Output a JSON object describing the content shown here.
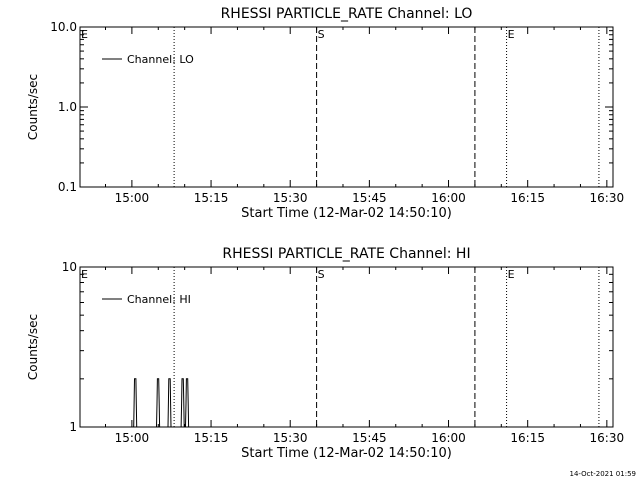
{
  "chart_data": [
    {
      "type": "line",
      "title": "RHESSI PARTICLE_RATE Channel: LO",
      "xlabel": "Start Time (12-Mar-02 14:50:10)",
      "ylabel": "Counts/sec",
      "yscale": "log",
      "xlim": [
        "14:50:10",
        "16:31:10"
      ],
      "ylim": [
        0.1,
        10.0
      ],
      "x_ticks": [
        "15:00",
        "15:15",
        "15:30",
        "15:45",
        "16:00",
        "16:15",
        "16:30"
      ],
      "y_ticks": [
        "0.1",
        "1.0",
        "10.0"
      ],
      "grid": false,
      "legend": {
        "position": "top-left",
        "entries": [
          "Channel: LO"
        ]
      },
      "series": [
        {
          "name": "Channel: LO",
          "points": []
        }
      ],
      "markers": [
        {
          "time": "15:08:00",
          "style": "dotted",
          "label": ""
        },
        {
          "time": "15:35:00",
          "style": "dashed",
          "label": "S"
        },
        {
          "time": "16:05:00",
          "style": "dashed",
          "label": ""
        },
        {
          "time": "16:11:00",
          "style": "dotted",
          "label": "E"
        },
        {
          "time": "16:28:30",
          "style": "dotted",
          "label": ""
        }
      ],
      "corner_label": "E"
    },
    {
      "type": "line",
      "title": "RHESSI PARTICLE_RATE Channel: HI",
      "xlabel": "Start Time (12-Mar-02 14:50:10)",
      "ylabel": "Counts/sec",
      "yscale": "log",
      "xlim": [
        "14:50:10",
        "16:31:10"
      ],
      "ylim": [
        1,
        10
      ],
      "x_ticks": [
        "15:00",
        "15:15",
        "15:30",
        "15:45",
        "16:00",
        "16:15",
        "16:30"
      ],
      "y_ticks": [
        "1",
        "10"
      ],
      "grid": false,
      "legend": {
        "position": "top-left",
        "entries": [
          "Channel: HI"
        ]
      },
      "series": [
        {
          "name": "Channel: HI",
          "points": [
            [
              "15:00:20",
              1
            ],
            [
              "15:00:25",
              1.4
            ],
            [
              "15:00:30",
              2
            ],
            [
              "15:00:45",
              2
            ],
            [
              "15:00:50",
              1.4
            ],
            [
              "15:00:55",
              1
            ],
            [
              "15:04:40",
              1
            ],
            [
              "15:04:45",
              1.4
            ],
            [
              "15:04:50",
              2
            ],
            [
              "15:05:05",
              2
            ],
            [
              "15:05:10",
              1.4
            ],
            [
              "15:05:15",
              1
            ],
            [
              "15:06:50",
              1
            ],
            [
              "15:06:55",
              1.4
            ],
            [
              "15:07:00",
              2
            ],
            [
              "15:07:15",
              2
            ],
            [
              "15:07:20",
              1.4
            ],
            [
              "15:07:25",
              1
            ],
            [
              "15:09:20",
              1
            ],
            [
              "15:09:25",
              1.4
            ],
            [
              "15:09:30",
              2
            ],
            [
              "15:09:45",
              2
            ],
            [
              "15:09:50",
              1.4
            ],
            [
              "15:09:55",
              1
            ],
            [
              "15:10:10",
              1
            ],
            [
              "15:10:15",
              1.4
            ],
            [
              "15:10:20",
              2
            ],
            [
              "15:10:35",
              2
            ],
            [
              "15:10:40",
              1.4
            ],
            [
              "15:10:45",
              1
            ]
          ]
        }
      ],
      "markers": [
        {
          "time": "15:08:00",
          "style": "dotted",
          "label": ""
        },
        {
          "time": "15:35:00",
          "style": "dashed",
          "label": "S"
        },
        {
          "time": "16:05:00",
          "style": "dashed",
          "label": ""
        },
        {
          "time": "16:11:00",
          "style": "dotted",
          "label": "E"
        },
        {
          "time": "16:28:30",
          "style": "dotted",
          "label": ""
        }
      ],
      "corner_label": "E"
    }
  ],
  "footer": {
    "timestamp": "14-Oct-2021 01:59"
  }
}
